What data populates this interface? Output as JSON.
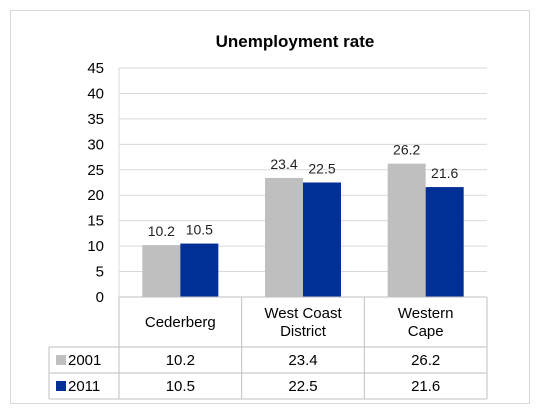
{
  "chart_data": {
    "type": "bar",
    "title": "Unemployment rate",
    "categories": [
      [
        "Cederberg"
      ],
      [
        "West Coast",
        "District"
      ],
      [
        "Western",
        "Cape"
      ]
    ],
    "series": [
      {
        "name": "2001",
        "values": [
          10.2,
          23.4,
          26.2
        ],
        "labels": [
          "10.2",
          "23.4",
          "26.2"
        ],
        "color": "#bfbfbf"
      },
      {
        "name": "2011",
        "values": [
          10.5,
          22.5,
          21.6
        ],
        "labels": [
          "10.5",
          "22.5",
          "21.6"
        ],
        "color": "#002f95"
      }
    ],
    "ylim": [
      0,
      45
    ],
    "yticks": [
      "0",
      "5",
      "10",
      "15",
      "20",
      "25",
      "30",
      "35",
      "40",
      "45"
    ],
    "grid": true,
    "data_table": true
  }
}
